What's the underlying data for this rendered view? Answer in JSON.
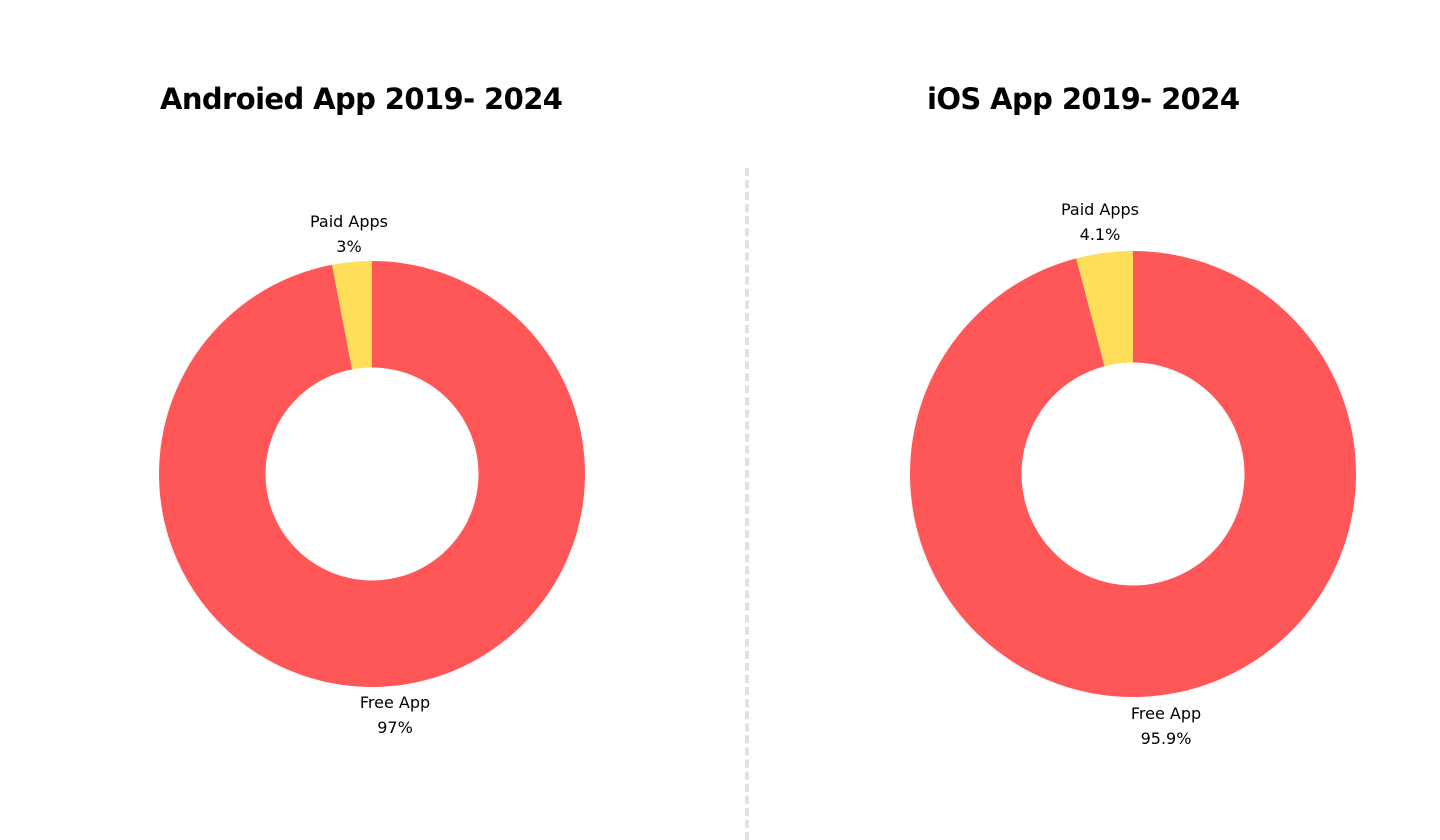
{
  "chart_data": [
    {
      "type": "pie",
      "title": "Androied App 2019- 2024",
      "hole": 0.5,
      "categories": [
        "Free App",
        "Paid Apps"
      ],
      "values": [
        97,
        3
      ],
      "value_labels": [
        "97%",
        "3%"
      ],
      "colors": [
        "#ff5757",
        "#ffde59"
      ],
      "legend": "none"
    },
    {
      "type": "pie",
      "title": "iOS App 2019- 2024",
      "hole": 0.5,
      "categories": [
        "Free App",
        "Paid Apps"
      ],
      "values": [
        95.9,
        4.1
      ],
      "value_labels": [
        "95.9%",
        "4.1%"
      ],
      "colors": [
        "#ff5757",
        "#ffde59"
      ],
      "legend": "none"
    }
  ]
}
